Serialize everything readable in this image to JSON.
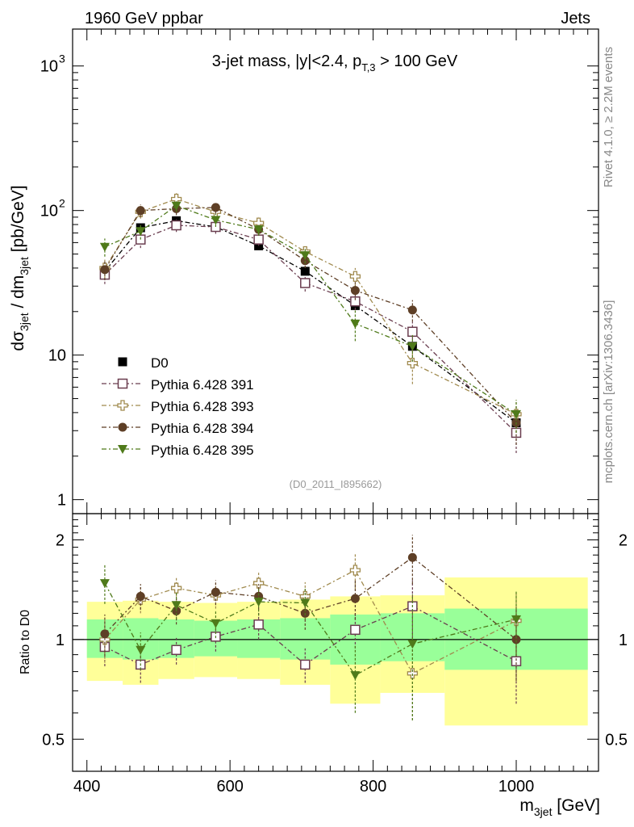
{
  "header": {
    "left": "1960 GeV ppbar",
    "right": "Jets"
  },
  "side": {
    "rivet": "Rivet 4.1.0, ≥ 2.2M events",
    "mcplots": "mcplots.cern.ch [arXiv:1306.3436]"
  },
  "watermark": "(D0_2011_I895662)",
  "colors": {
    "D0": "#000000",
    "p391": "#6a3d4f",
    "p393": "#a08a4e",
    "p394": "#5e3f26",
    "p395": "#4f7a1a",
    "band_yellow": "#ffff99",
    "band_green": "#99ff99"
  },
  "chart_data": [
    {
      "type": "line",
      "title_parts": {
        "pre": "3-jet mass, |y|<2.4, p",
        "sub": "T,3",
        "post": " > 100 GeV"
      },
      "ylabel_parts": [
        "dσ",
        "3jet",
        " / dm",
        "3jet",
        " [pb/GeV]"
      ],
      "yscale": "log",
      "ylim": [
        0.8,
        1800
      ],
      "xlim": [
        380,
        1115
      ],
      "y_ticks": [
        {
          "value": 1,
          "label": "1"
        },
        {
          "value": 10,
          "label": "10"
        },
        {
          "value": 100,
          "label": "10",
          "sup": "2"
        },
        {
          "value": 1000,
          "label": "10",
          "sup": "3"
        }
      ],
      "legend_position": "middle-left",
      "x": [
        425,
        475,
        525,
        580,
        640,
        705,
        775,
        855,
        1000
      ],
      "series": [
        {
          "name": "D0",
          "key": "D0",
          "marker": "square-filled",
          "values": [
            38,
            76,
            85,
            77,
            57,
            38,
            22,
            11.5,
            3.4
          ],
          "errors": [
            0,
            0,
            0,
            0,
            0,
            0,
            0,
            0,
            0
          ]
        },
        {
          "name": "Pythia 6.428 391",
          "key": "p391",
          "marker": "square-open",
          "values": [
            36,
            63,
            79,
            77,
            63,
            31.5,
            23.5,
            14.5,
            2.9
          ],
          "errors": [
            5,
            8,
            8,
            8,
            6,
            4,
            3,
            2.5,
            0.8
          ]
        },
        {
          "name": "Pythia 6.428 393",
          "key": "p393",
          "marker": "cross-open",
          "values": [
            40,
            98,
            120,
            98,
            82,
            52,
            35,
            8.8,
            3.9
          ],
          "errors": [
            6,
            10,
            12,
            10,
            8,
            5,
            5,
            2.5,
            1.0
          ]
        },
        {
          "name": "Pythia 6.428 394",
          "key": "p394",
          "marker": "circle-filled",
          "values": [
            39,
            100,
            103,
            105,
            74,
            45,
            28,
            20.5,
            3.4
          ],
          "errors": [
            6,
            10,
            10,
            10,
            7,
            5,
            4,
            3.5,
            1.0
          ]
        },
        {
          "name": "Pythia 6.428 395",
          "key": "p395",
          "marker": "triangle-down-filled",
          "values": [
            56,
            72,
            108,
            86,
            74,
            49,
            16.5,
            11.5,
            3.9
          ],
          "errors": [
            8,
            9,
            10,
            9,
            7,
            6,
            4,
            2.5,
            1.0
          ]
        }
      ]
    },
    {
      "type": "line",
      "ylabel": "Ratio to D0",
      "xlabel_parts": {
        "pre": "m",
        "sub": "3jet",
        "post": " [GeV]"
      },
      "yscale": "log",
      "ylim": [
        0.4,
        2.4
      ],
      "xlim": [
        380,
        1115
      ],
      "x_ticks": [
        {
          "value": 400,
          "label": "400"
        },
        {
          "value": 600,
          "label": "600"
        },
        {
          "value": 800,
          "label": "800"
        },
        {
          "value": 1000,
          "label": "1000"
        }
      ],
      "y_ticks": [
        {
          "value": 0.5,
          "label": "0.5"
        },
        {
          "value": 1,
          "label": "1"
        },
        {
          "value": 2,
          "label": "2"
        }
      ],
      "bands": [
        {
          "x": [
            400,
            450
          ],
          "yellow": [
            0.75,
            1.3
          ],
          "green": [
            0.88,
            1.15
          ]
        },
        {
          "x": [
            450,
            500
          ],
          "yellow": [
            0.73,
            1.31
          ],
          "green": [
            0.87,
            1.16
          ]
        },
        {
          "x": [
            500,
            550
          ],
          "yellow": [
            0.76,
            1.3
          ],
          "green": [
            0.88,
            1.15
          ]
        },
        {
          "x": [
            550,
            610
          ],
          "yellow": [
            0.77,
            1.29
          ],
          "green": [
            0.89,
            1.14
          ]
        },
        {
          "x": [
            610,
            670
          ],
          "yellow": [
            0.76,
            1.3
          ],
          "green": [
            0.88,
            1.15
          ]
        },
        {
          "x": [
            670,
            740
          ],
          "yellow": [
            0.73,
            1.32
          ],
          "green": [
            0.87,
            1.16
          ]
        },
        {
          "x": [
            740,
            810
          ],
          "yellow": [
            0.64,
            1.35
          ],
          "green": [
            0.84,
            1.19
          ]
        },
        {
          "x": [
            810,
            900
          ],
          "yellow": [
            0.69,
            1.36
          ],
          "green": [
            0.86,
            1.2
          ]
        },
        {
          "x": [
            900,
            1100
          ],
          "yellow": [
            0.55,
            1.54
          ],
          "green": [
            0.81,
            1.24
          ]
        }
      ],
      "x": [
        425,
        475,
        525,
        580,
        640,
        705,
        775,
        855,
        1000
      ],
      "series": [
        {
          "name": "Pythia 6.428 391",
          "key": "p391",
          "marker": "square-open",
          "values": [
            0.95,
            0.84,
            0.93,
            1.02,
            1.11,
            0.84,
            1.07,
            1.26,
            0.86
          ],
          "errors": [
            0.12,
            0.1,
            0.09,
            0.1,
            0.11,
            0.1,
            0.13,
            0.25,
            0.22
          ]
        },
        {
          "name": "Pythia 6.428 393",
          "key": "p393",
          "marker": "cross-open",
          "values": [
            1.0,
            1.32,
            1.43,
            1.36,
            1.48,
            1.35,
            1.62,
            0.79,
            1.14
          ],
          "errors": [
            0.15,
            0.12,
            0.12,
            0.12,
            0.12,
            0.14,
            0.2,
            0.22,
            0.25
          ]
        },
        {
          "name": "Pythia 6.428 394",
          "key": "p394",
          "marker": "circle-filled",
          "values": [
            1.04,
            1.35,
            1.22,
            1.39,
            1.35,
            1.2,
            1.33,
            1.77,
            1.0
          ],
          "errors": [
            0.15,
            0.12,
            0.11,
            0.12,
            0.12,
            0.13,
            0.18,
            0.3,
            0.25
          ]
        },
        {
          "name": "Pythia 6.428 395",
          "key": "p395",
          "marker": "triangle-down-filled",
          "values": [
            1.48,
            0.93,
            1.27,
            1.12,
            1.3,
            1.29,
            0.78,
            0.97,
            1.15
          ],
          "errors": [
            0.2,
            0.12,
            0.12,
            0.11,
            0.12,
            0.14,
            0.18,
            0.4,
            0.25
          ]
        }
      ]
    }
  ]
}
